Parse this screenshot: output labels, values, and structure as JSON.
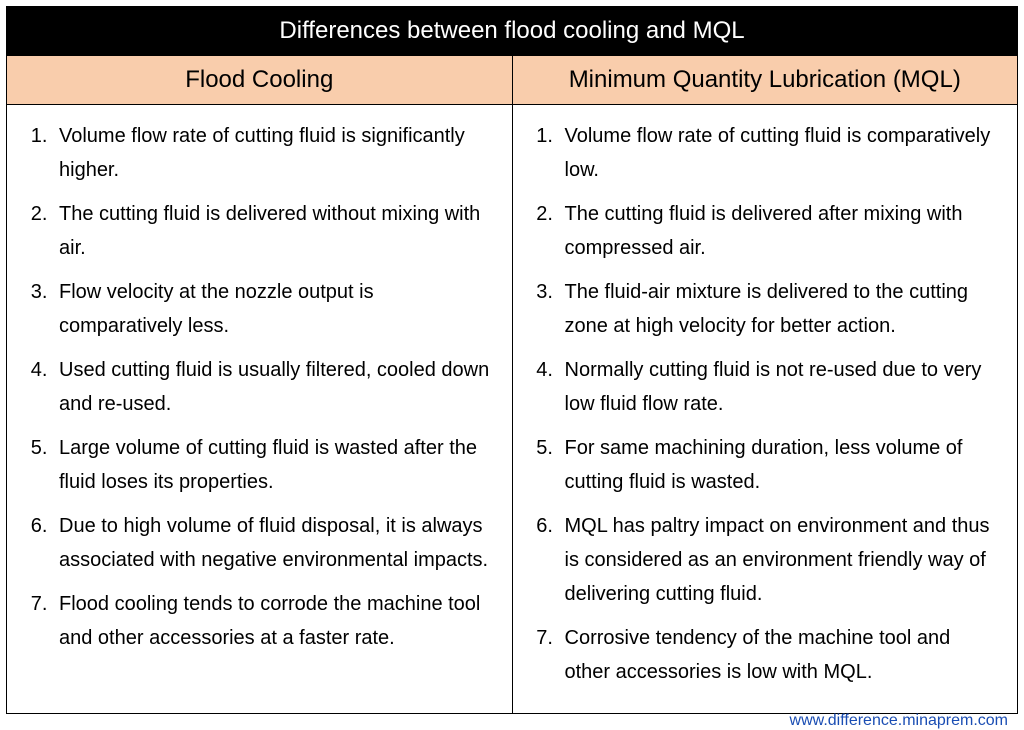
{
  "title": "Differences between flood cooling and MQL",
  "columns": {
    "left": "Flood Cooling",
    "right": "Minimum Quantity Lubrication (MQL)"
  },
  "points": {
    "left": [
      "Volume flow rate of cutting fluid is significantly higher.",
      "The cutting fluid is delivered without mixing with air.",
      "Flow velocity at the nozzle output is comparatively less.",
      "Used cutting fluid is usually filtered, cooled down and re-used.",
      "Large volume of cutting fluid is wasted after the fluid loses its properties.",
      "Due to high volume of fluid disposal, it is always associated with negative environmental impacts.",
      "Flood cooling tends to corrode the machine tool and other accessories at a faster rate."
    ],
    "right": [
      "Volume flow rate of cutting fluid is comparatively low.",
      "The cutting fluid is delivered after mixing with compressed air.",
      "The fluid-air mixture is delivered to the cutting zone at high velocity for better action.",
      "Normally cutting fluid is not re-used due to very low fluid flow rate.",
      "For same machining duration, less volume of cutting fluid is wasted.",
      "MQL has paltry impact on environment and thus is considered as an environment friendly way of delivering cutting fluid.",
      "Corrosive tendency of the machine tool and other accessories is low with MQL."
    ]
  },
  "footer_url": "www.difference.minaprem.com",
  "colors": {
    "title_bg": "#000000",
    "title_text": "#ffffff",
    "header_bg": "#f9cdac",
    "border": "#000000",
    "body_text": "#000000",
    "url_color": "#1a4db3"
  }
}
